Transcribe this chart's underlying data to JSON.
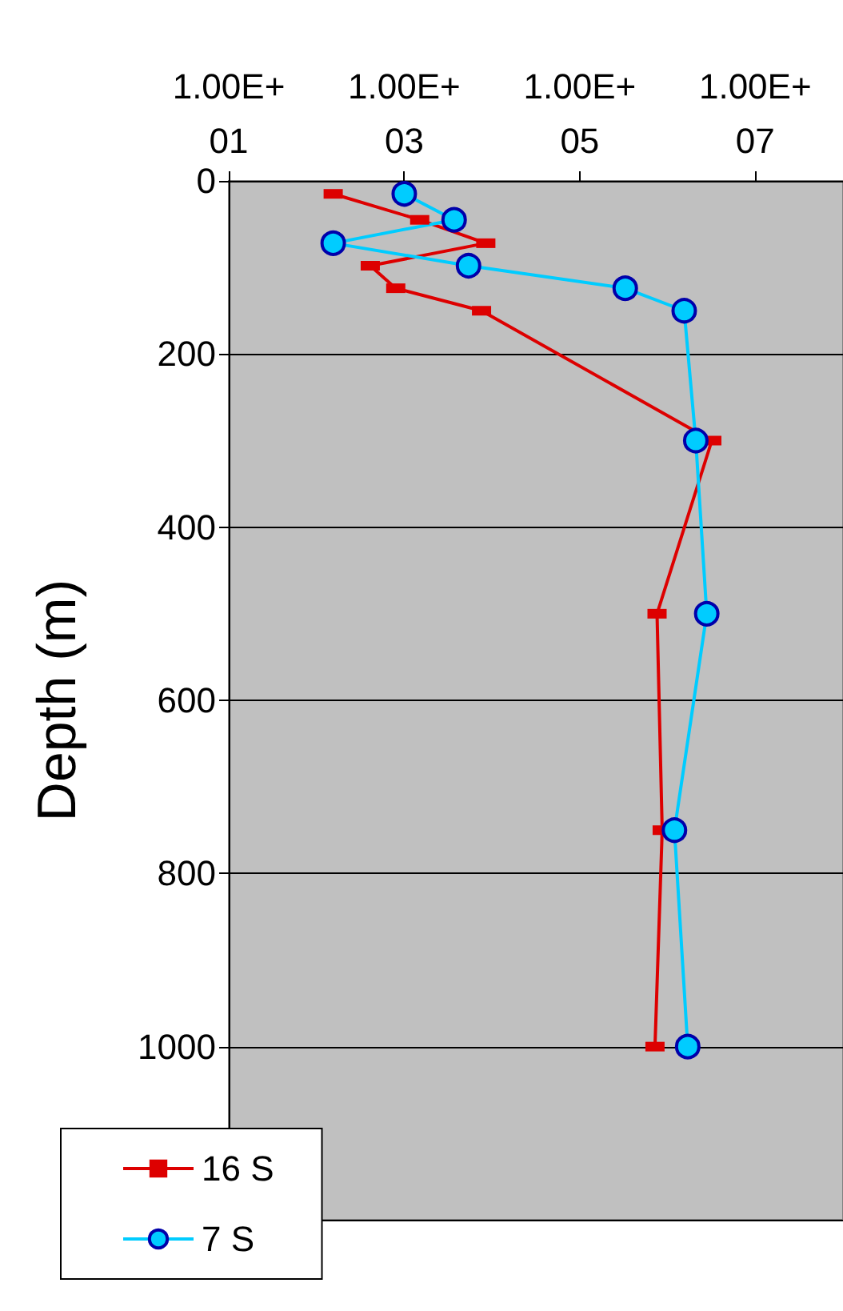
{
  "chart_data": {
    "type": "line",
    "ylabel": "Depth (m)",
    "xlim": [
      10,
      100000000
    ],
    "xticks": [
      {
        "value": 10,
        "label": "1.00E+01"
      },
      {
        "value": 1000,
        "label": "1.00E+03"
      },
      {
        "value": 100000,
        "label": "1.00E+05"
      },
      {
        "value": 10000000,
        "label": "1.00E+07"
      }
    ],
    "ylim": [
      1200,
      0
    ],
    "yticks": [
      0,
      200,
      400,
      600,
      800,
      1000
    ],
    "log": "x",
    "grid": "y",
    "legend": "bottom left",
    "series": [
      {
        "name": "16 S",
        "color": "#dd0000",
        "marker": "square",
        "x": [
          155,
          1500,
          8500,
          410,
          800,
          7600,
          3200000,
          760000,
          870000,
          720000
        ],
        "values": [
          15,
          45,
          72,
          98,
          124,
          150,
          300,
          500,
          750,
          1000
        ]
      },
      {
        "name": "7 S",
        "color": "#00ccff",
        "marker": "circle",
        "x": [
          1000,
          3700,
          155,
          5400,
          330000,
          1550000,
          2100000,
          2800000,
          1200000,
          1700000
        ],
        "values": [
          15,
          45,
          72,
          98,
          124,
          150,
          300,
          500,
          750,
          1000
        ]
      }
    ]
  }
}
